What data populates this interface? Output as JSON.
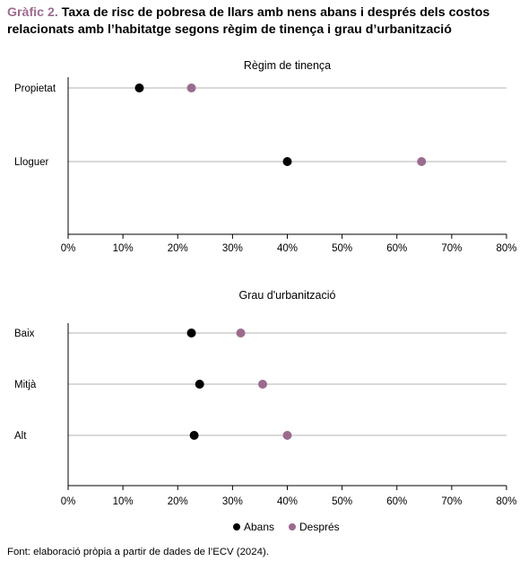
{
  "figure": {
    "label": "Gràfic 2.",
    "title": "Taxa de risc de pobresa de llars amb nens abans i després dels costos relacionats amb l’habitatge segons règim de tinença i grau d’urbanització",
    "source": "Font: elaboració pròpia a partir de dades de l’ECV (2024)."
  },
  "colors": {
    "abans": "#000000",
    "despres": "#9b6b8e",
    "title_label": "#9b6b8e",
    "gridline": "#b3b3b3"
  },
  "legend": {
    "position": "bottom",
    "items": [
      {
        "name": "Abans",
        "color": "#000000"
      },
      {
        "name": "Després",
        "color": "#9b6b8e"
      }
    ]
  },
  "chart_data": [
    {
      "type": "scatter",
      "subtype": "dot-plot",
      "title": "Règim de tinença",
      "categories": [
        "Propietat",
        "Lloguer"
      ],
      "series": [
        {
          "name": "Abans",
          "values": [
            13,
            40
          ]
        },
        {
          "name": "Després",
          "values": [
            22.5,
            64.5
          ]
        }
      ],
      "xlim": [
        0,
        80
      ],
      "xticks": [
        "0%",
        "10%",
        "20%",
        "30%",
        "40%",
        "50%",
        "60%",
        "70%",
        "80%"
      ],
      "grid": true,
      "legend": "bottom"
    },
    {
      "type": "scatter",
      "subtype": "dot-plot",
      "title": "Grau d'urbanització",
      "categories": [
        "Baix",
        "Mitjà",
        "Alt"
      ],
      "series": [
        {
          "name": "Abans",
          "values": [
            22.5,
            24,
            23
          ]
        },
        {
          "name": "Després",
          "values": [
            31.5,
            35.5,
            40
          ]
        }
      ],
      "xlim": [
        0,
        80
      ],
      "xticks": [
        "0%",
        "10%",
        "20%",
        "30%",
        "40%",
        "50%",
        "60%",
        "70%",
        "80%"
      ],
      "grid": true,
      "legend": "bottom"
    }
  ]
}
